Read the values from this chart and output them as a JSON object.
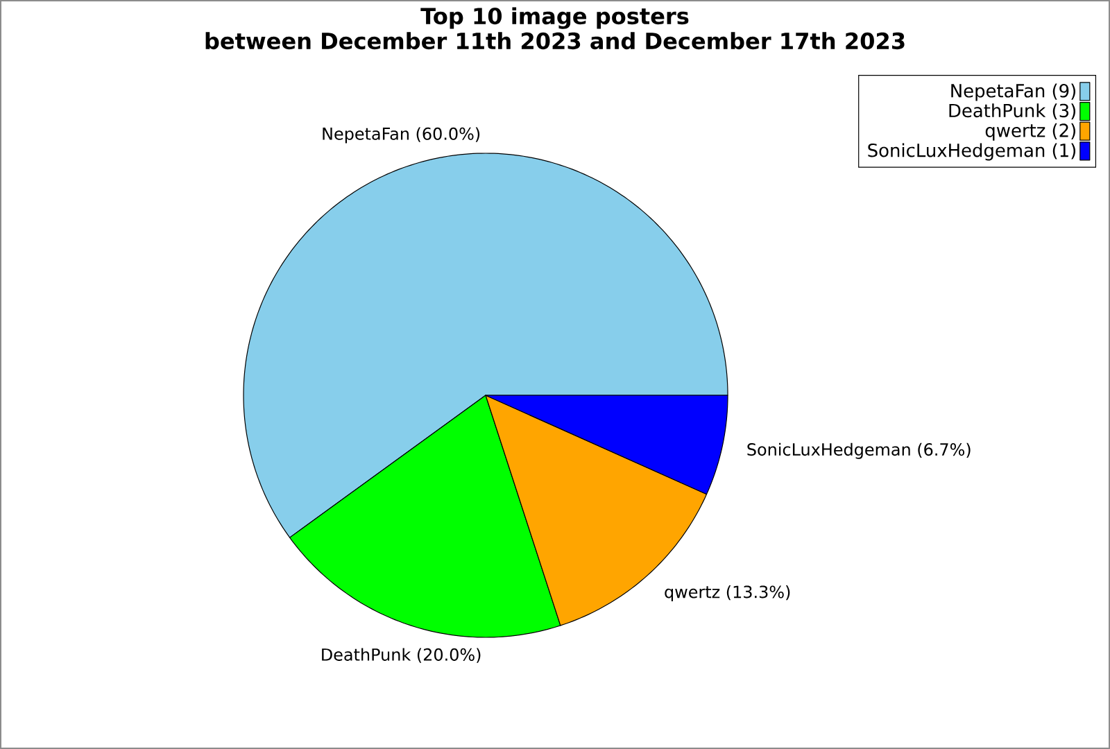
{
  "chart_data": {
    "type": "pie",
    "title": "Top 10 image posters",
    "subtitle": "between December 11th 2023 and December 17th 2023",
    "categories": [
      "NepetaFan (9)",
      "DeathPunk (3)",
      "qwertz (2)",
      "SonicLuxHedgeman (1)"
    ],
    "values": [
      60.0,
      20.0,
      13.3,
      6.7
    ],
    "value_labels": [
      "NepetaFan (60.0%)",
      "DeathPunk (20.0%)",
      "qwertz (13.3%)",
      "SonicLuxHedgeman (6.7%)"
    ],
    "colors": [
      "#87ceeb",
      "#00ff00",
      "#ffa500",
      "#0000ff"
    ],
    "legend": "top right"
  }
}
